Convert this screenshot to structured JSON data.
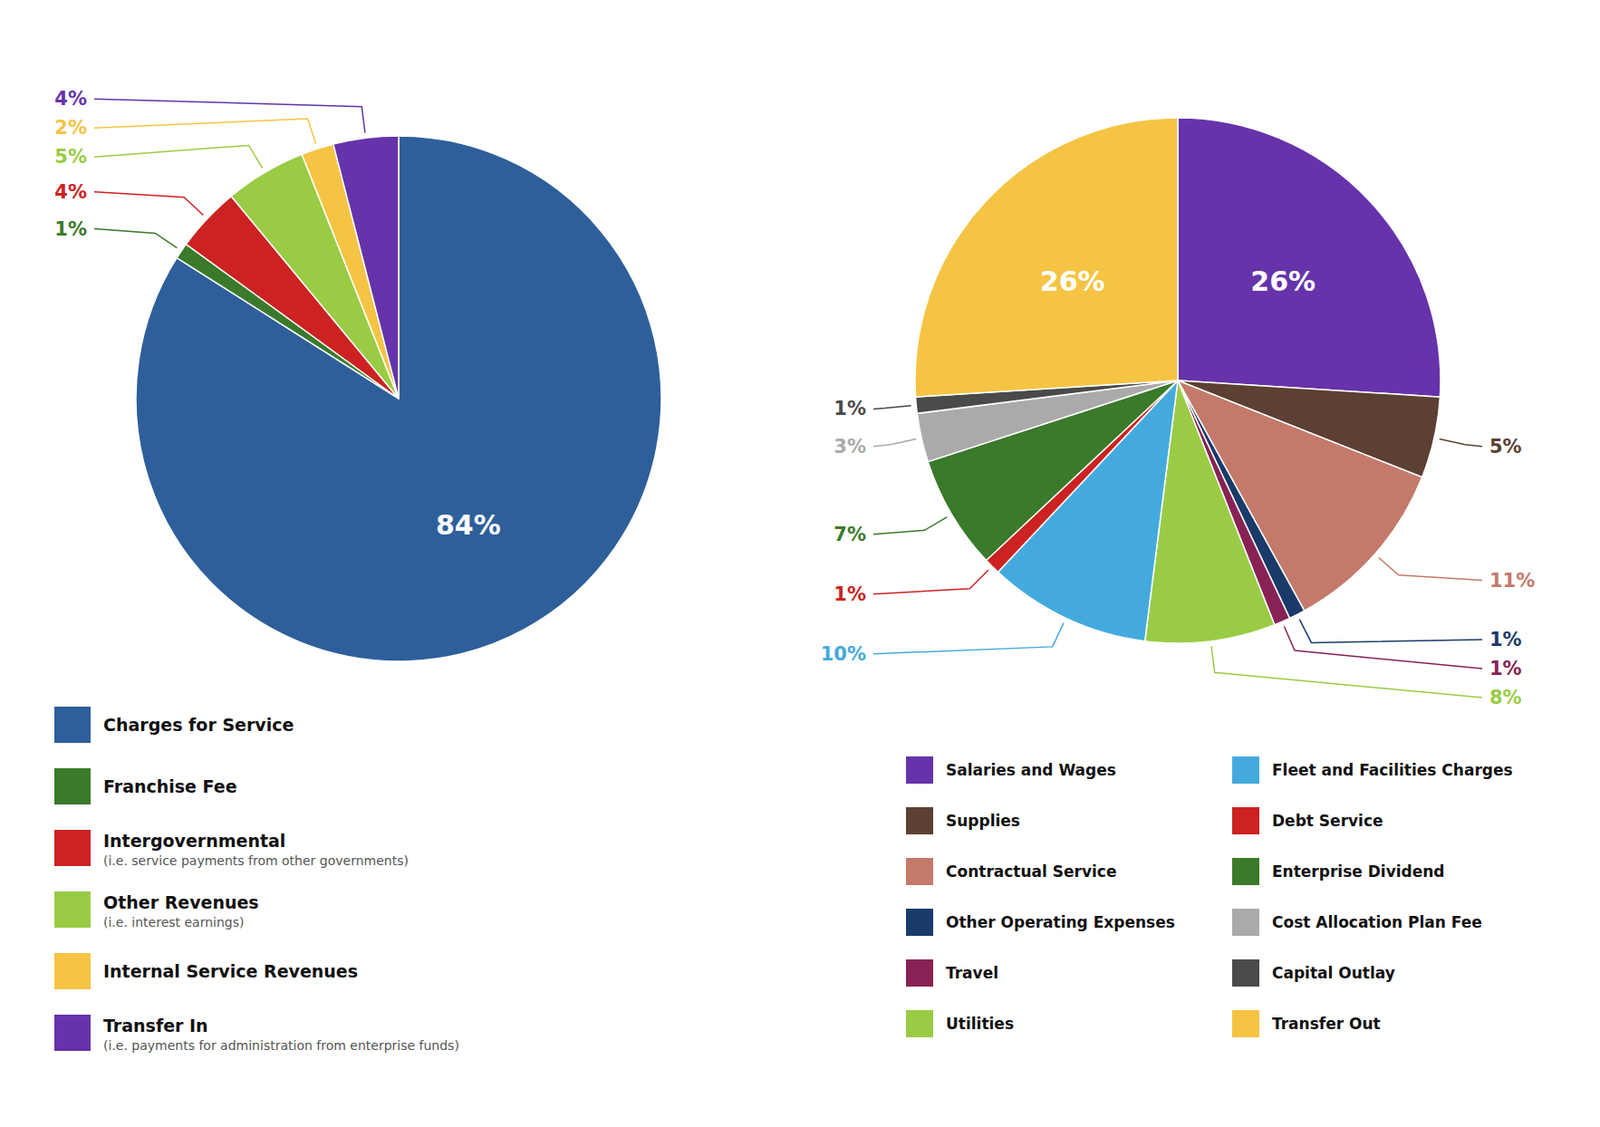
{
  "chart_data": [
    {
      "type": "pie",
      "categories": [
        "Charges for Service",
        "Franchise Fee",
        "Intergovernmental",
        "Other Revenues",
        "Internal Service Revenues",
        "Transfer In"
      ],
      "values": [
        84,
        1,
        4,
        5,
        2,
        4
      ],
      "value_labels": [
        "84%",
        "1%",
        "4%",
        "5%",
        "2%",
        "4%"
      ],
      "colors": [
        "#2E5F9A",
        "#3A7A2A",
        "#CC2222",
        "#99CC44",
        "#F5C444",
        "#6633AA"
      ],
      "data_labels": true,
      "legend": "bottom",
      "annotations": [
        {
          "label": "Intergovernmental",
          "text": "(i.e. service payments from other governments)"
        },
        {
          "label": "Other Revenues",
          "text": "(i.e. interest earnings)"
        },
        {
          "label": "Transfer In",
          "text": "(i.e. payments for administration from enterprise funds)"
        }
      ]
    },
    {
      "type": "pie",
      "categories": [
        "Salaries and Wages",
        "Supplies",
        "Contractual Service",
        "Other Operating Expenses",
        "Travel",
        "Utilities",
        "Fleet and Facilities Charges",
        "Debt Service",
        "Enterprise Dividend",
        "Cost Allocation Plan Fee",
        "Capital Outlay",
        "Transfer Out"
      ],
      "values": [
        26,
        5,
        11,
        1,
        1,
        8,
        10,
        1,
        7,
        3,
        1,
        26
      ],
      "value_labels": [
        "26%",
        "5%",
        "11%",
        "1%",
        "1%",
        "8%",
        "10%",
        "1%",
        "7%",
        "3%",
        "1%",
        "26%"
      ],
      "colors": [
        "#6633AA",
        "#5C4033",
        "#C47A6A",
        "#1A3A6A",
        "#882255",
        "#99CC44",
        "#44AADD",
        "#CC2222",
        "#3A7A2A",
        "#AAAAAA",
        "#4A4A4A",
        "#F5C444"
      ],
      "data_labels": true,
      "legend": "bottom"
    }
  ]
}
